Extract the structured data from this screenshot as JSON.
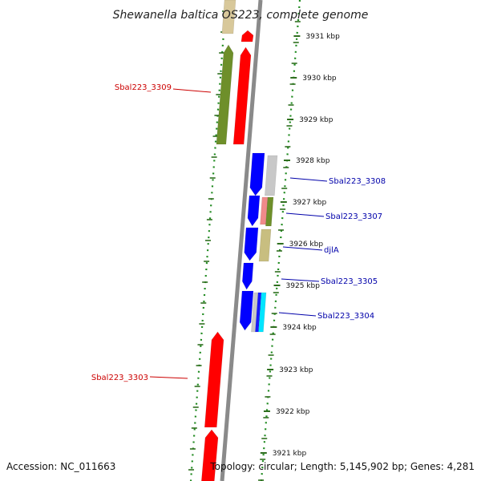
{
  "title": "Shewanella baltica OS223, complete genome",
  "footer": {
    "accession": "Accession: NC_011663",
    "topology": "Topology: circular; Length: 5,145,902 bp; Genes: 4,281"
  },
  "colors": {
    "background": "#ffffff",
    "backbone": "#8a8a8a",
    "axis_dots": "#1f8a1f",
    "tick_marks": "#2f6f1f",
    "forward_label": "#cc0000",
    "reverse_label": "#0000aa"
  },
  "ticks": [
    {
      "label": "3931 kbp"
    },
    {
      "label": "3930 kbp"
    },
    {
      "label": "3929 kbp"
    },
    {
      "label": "3928 kbp"
    },
    {
      "label": "3927 kbp"
    },
    {
      "label": "3926 kbp"
    },
    {
      "label": "3925 kbp"
    },
    {
      "label": "3924 kbp"
    },
    {
      "label": "3923 kbp"
    },
    {
      "label": "3922 kbp"
    },
    {
      "label": "3921 kbp"
    }
  ],
  "gene_labels": [
    {
      "text": "Sbal223_3309",
      "strand": "forward"
    },
    {
      "text": "Sbal223_3303",
      "strand": "forward"
    },
    {
      "text": "Sbal223_3308",
      "strand": "reverse"
    },
    {
      "text": "Sbal223_3307",
      "strand": "reverse"
    },
    {
      "text": "djlA",
      "strand": "reverse"
    },
    {
      "text": "Sbal223_3305",
      "strand": "reverse"
    },
    {
      "text": "Sbal223_3304",
      "strand": "reverse"
    }
  ],
  "features": [
    {
      "track": "outer-forward",
      "color": "#d8c89a",
      "direction": "up",
      "note": "partial at top"
    },
    {
      "track": "outer-forward",
      "color": "#6e8f2a",
      "direction": "up"
    },
    {
      "track": "inner-forward",
      "color": "#ff0000",
      "direction": "up"
    },
    {
      "track": "inner-forward",
      "color": "#ff0000",
      "direction": "up"
    },
    {
      "track": "inner-forward",
      "color": "#ff0000",
      "direction": "up"
    },
    {
      "track": "inner-forward",
      "color": "#ff0000",
      "direction": "up"
    },
    {
      "track": "inner-reverse",
      "color": "#0000ff",
      "direction": "down"
    },
    {
      "track": "inner-reverse",
      "color": "#0000ff",
      "direction": "down"
    },
    {
      "track": "inner-reverse",
      "color": "#0000ff",
      "direction": "down"
    },
    {
      "track": "inner-reverse",
      "color": "#0000ff",
      "direction": "down"
    },
    {
      "track": "inner-reverse",
      "color": "#0000ff",
      "direction": "down"
    },
    {
      "track": "outer-reverse",
      "color": "#c8c8c8",
      "direction": "none"
    },
    {
      "track": "outer-reverse",
      "color": "#f08a8a",
      "direction": "none"
    },
    {
      "track": "outer-reverse",
      "color": "#6e8f2a",
      "direction": "none"
    },
    {
      "track": "outer-reverse",
      "color": "#c8be80",
      "direction": "none"
    },
    {
      "track": "outer-reverse",
      "color": "#c8c8c8",
      "direction": "none"
    },
    {
      "track": "outer-reverse",
      "color": "#1a1aff",
      "direction": "none"
    },
    {
      "track": "outer-reverse",
      "color": "#00e5ff",
      "direction": "none"
    }
  ]
}
